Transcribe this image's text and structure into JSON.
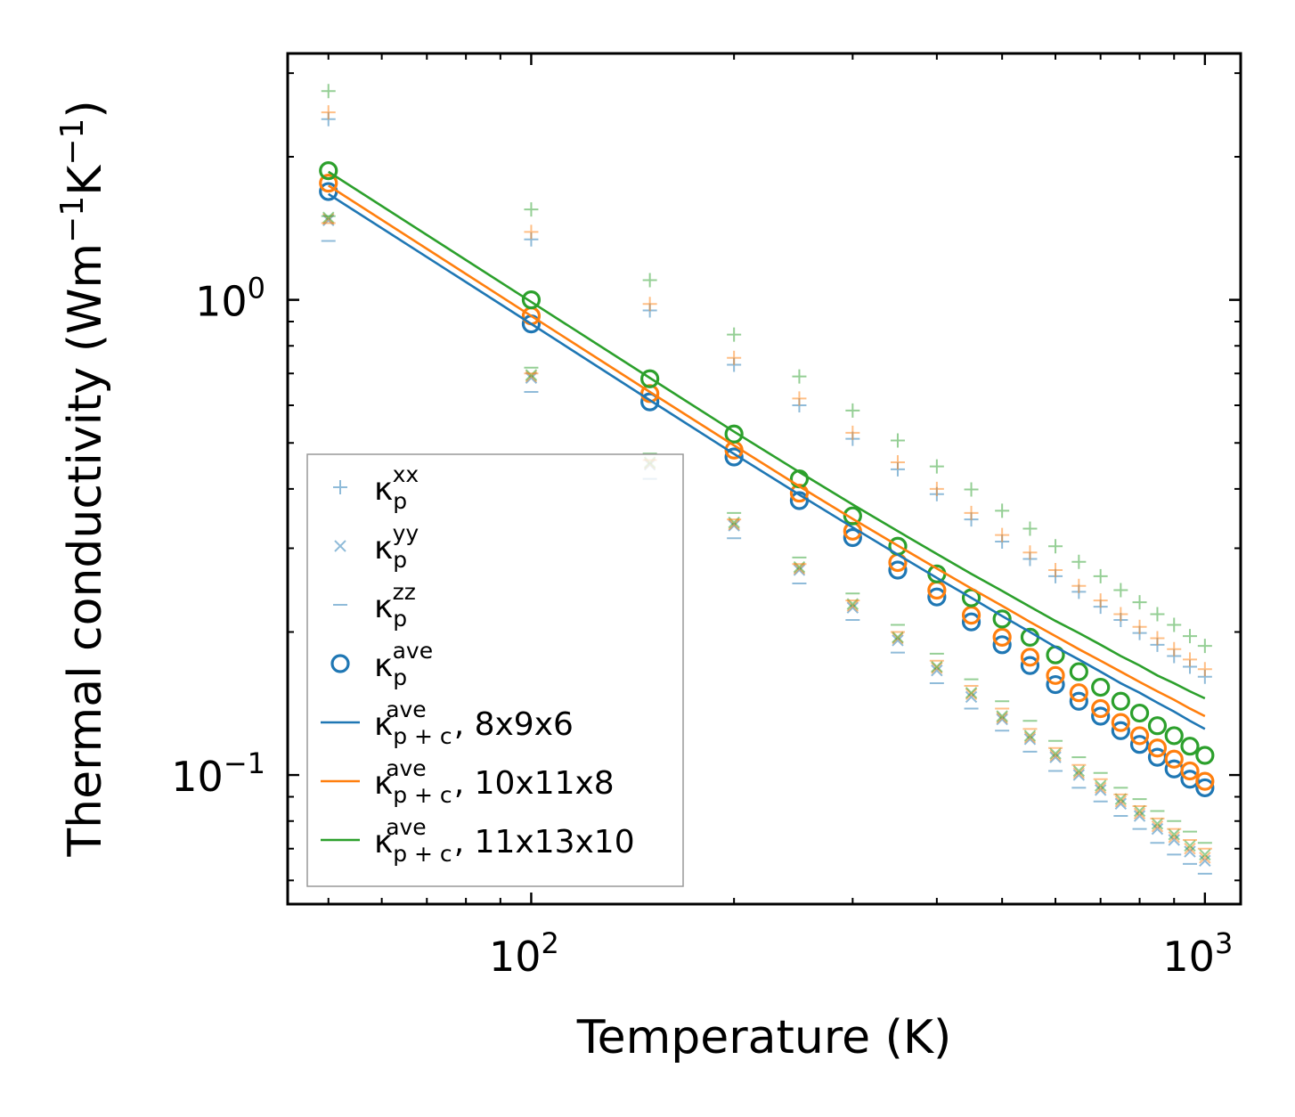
{
  "chart_data": {
    "type": "scatter",
    "title": "",
    "xlabel": "Temperature (K)",
    "ylabel_main": "Thermal conductivity (Wm",
    "ylabel_exp1": "−1",
    "ylabel_mid": "K",
    "ylabel_exp2": "−1",
    "ylabel_close": ")",
    "xscale": "log",
    "yscale": "log",
    "xlim": [
      43.5,
      1130
    ],
    "ylim": [
      0.0535,
      3.3
    ],
    "x_ticks": [
      {
        "value": 100,
        "base": "10",
        "exp": "2"
      },
      {
        "value": 1000,
        "base": "10",
        "exp": "3"
      }
    ],
    "y_ticks": [
      {
        "value": 1.0,
        "base": "10",
        "exp": "0"
      },
      {
        "value": 0.1,
        "base": "10",
        "exp": "−1"
      }
    ],
    "colors": {
      "blue": "#1f77b4",
      "orange": "#ff7f0e",
      "green": "#2ca02c"
    },
    "temperatures": [
      50,
      100,
      150,
      200,
      250,
      300,
      350,
      400,
      450,
      500,
      550,
      600,
      650,
      700,
      750,
      800,
      850,
      900,
      950,
      1000
    ],
    "series": [
      {
        "name": "kp_xx_8x9x6",
        "mesh": "8x9x6",
        "component": "xx",
        "marker": "plus",
        "color": "#1f77b4",
        "values": [
          2.4,
          1.34,
          0.95,
          0.73,
          0.6,
          0.51,
          0.44,
          0.39,
          0.345,
          0.31,
          0.285,
          0.262,
          0.243,
          0.226,
          0.212,
          0.199,
          0.188,
          0.178,
          0.169,
          0.161
        ]
      },
      {
        "name": "kp_xx_10x11x8",
        "mesh": "10x11x8",
        "component": "xx",
        "marker": "plus",
        "color": "#ff7f0e",
        "values": [
          2.48,
          1.39,
          0.98,
          0.755,
          0.62,
          0.525,
          0.455,
          0.4,
          0.356,
          0.32,
          0.294,
          0.27,
          0.25,
          0.233,
          0.218,
          0.205,
          0.194,
          0.184,
          0.175,
          0.167
        ]
      },
      {
        "name": "kp_xx_11x13x10",
        "mesh": "11x13x10",
        "component": "xx",
        "marker": "plus",
        "color": "#2ca02c",
        "values": [
          2.75,
          1.55,
          1.1,
          0.845,
          0.69,
          0.585,
          0.506,
          0.446,
          0.399,
          0.36,
          0.33,
          0.303,
          0.281,
          0.262,
          0.245,
          0.231,
          0.218,
          0.207,
          0.196,
          0.187
        ]
      },
      {
        "name": "kp_yy_8x9x6",
        "mesh": "8x9x6",
        "component": "yy",
        "marker": "x",
        "color": "#1f77b4",
        "values": [
          1.47,
          0.685,
          0.45,
          0.335,
          0.27,
          0.225,
          0.192,
          0.166,
          0.146,
          0.131,
          0.119,
          0.109,
          0.1,
          0.093,
          0.087,
          0.082,
          0.077,
          0.073,
          0.069,
          0.066
        ]
      },
      {
        "name": "kp_yy_10x11x8",
        "mesh": "10x11x8",
        "component": "yy",
        "marker": "x",
        "color": "#ff7f0e",
        "values": [
          1.48,
          0.69,
          0.452,
          0.337,
          0.272,
          0.227,
          0.194,
          0.168,
          0.148,
          0.132,
          0.12,
          0.11,
          0.101,
          0.094,
          0.088,
          0.083,
          0.078,
          0.074,
          0.07,
          0.067
        ]
      },
      {
        "name": "kp_yy_11x13x10",
        "mesh": "11x13x10",
        "component": "yy",
        "marker": "x",
        "color": "#2ca02c",
        "values": [
          1.49,
          0.695,
          0.455,
          0.34,
          0.274,
          0.229,
          0.195,
          0.169,
          0.149,
          0.133,
          0.121,
          0.111,
          0.102,
          0.095,
          0.089,
          0.084,
          0.079,
          0.075,
          0.071,
          0.068
        ]
      },
      {
        "name": "kp_zz_8x9x6",
        "mesh": "8x9x6",
        "component": "zz",
        "marker": "dash",
        "color": "#1f77b4",
        "values": [
          1.33,
          0.64,
          0.42,
          0.315,
          0.253,
          0.212,
          0.181,
          0.156,
          0.138,
          0.124,
          0.112,
          0.102,
          0.094,
          0.088,
          0.082,
          0.077,
          0.072,
          0.068,
          0.065,
          0.062
        ]
      },
      {
        "name": "kp_zz_10x11x8",
        "mesh": "10x11x8",
        "component": "zz",
        "marker": "dash",
        "color": "#ff7f0e",
        "values": [
          1.45,
          0.7,
          0.46,
          0.345,
          0.278,
          0.233,
          0.2,
          0.174,
          0.154,
          0.138,
          0.125,
          0.114,
          0.105,
          0.098,
          0.091,
          0.086,
          0.081,
          0.077,
          0.073,
          0.07
        ]
      },
      {
        "name": "kp_zz_11x13x10",
        "mesh": "11x13x10",
        "component": "zz",
        "marker": "dash",
        "color": "#2ca02c",
        "values": [
          1.5,
          0.72,
          0.475,
          0.356,
          0.287,
          0.241,
          0.207,
          0.18,
          0.159,
          0.143,
          0.13,
          0.118,
          0.109,
          0.101,
          0.094,
          0.089,
          0.084,
          0.08,
          0.076,
          0.072
        ]
      },
      {
        "name": "kp_ave_8x9x6",
        "mesh": "8x9x6",
        "component": "ave",
        "marker": "circle",
        "color": "#1f77b4",
        "values": [
          1.69,
          0.89,
          0.61,
          0.467,
          0.378,
          0.316,
          0.27,
          0.237,
          0.21,
          0.188,
          0.17,
          0.155,
          0.143,
          0.133,
          0.124,
          0.116,
          0.109,
          0.103,
          0.098,
          0.094
        ]
      },
      {
        "name": "kp_ave_10x11x8",
        "mesh": "10x11x8",
        "component": "ave",
        "marker": "circle",
        "color": "#ff7f0e",
        "values": [
          1.76,
          0.925,
          0.635,
          0.483,
          0.392,
          0.326,
          0.28,
          0.245,
          0.217,
          0.195,
          0.177,
          0.162,
          0.149,
          0.138,
          0.129,
          0.121,
          0.114,
          0.108,
          0.102,
          0.097
        ]
      },
      {
        "name": "kp_ave_11x13x10",
        "mesh": "11x13x10",
        "component": "ave",
        "marker": "circle",
        "color": "#2ca02c",
        "values": [
          1.87,
          1.0,
          0.682,
          0.522,
          0.42,
          0.351,
          0.303,
          0.265,
          0.236,
          0.213,
          0.195,
          0.179,
          0.165,
          0.153,
          0.143,
          0.135,
          0.127,
          0.121,
          0.115,
          0.11
        ]
      },
      {
        "name": "kpc_ave_8x9x6",
        "mesh": "8x9x6",
        "component": "p+c ave",
        "marker": "line",
        "color": "#1f77b4",
        "values": [
          1.67,
          0.89,
          0.615,
          0.474,
          0.389,
          0.332,
          0.291,
          0.26,
          0.236,
          0.216,
          0.2,
          0.186,
          0.175,
          0.165,
          0.156,
          0.149,
          0.142,
          0.136,
          0.13,
          0.125
        ]
      },
      {
        "name": "kpc_ave_10x11x8",
        "mesh": "10x11x8",
        "component": "p+c ave",
        "marker": "line",
        "color": "#ff7f0e",
        "values": [
          1.74,
          0.925,
          0.64,
          0.494,
          0.405,
          0.346,
          0.304,
          0.272,
          0.247,
          0.227,
          0.21,
          0.196,
          0.184,
          0.174,
          0.165,
          0.157,
          0.15,
          0.144,
          0.138,
          0.133
        ]
      },
      {
        "name": "kpc_ave_11x13x10",
        "mesh": "11x13x10",
        "component": "p+c ave",
        "marker": "line",
        "color": "#2ca02c",
        "values": [
          1.86,
          0.99,
          0.685,
          0.528,
          0.434,
          0.371,
          0.326,
          0.292,
          0.265,
          0.244,
          0.226,
          0.211,
          0.199,
          0.188,
          0.178,
          0.17,
          0.162,
          0.156,
          0.15,
          0.145
        ]
      }
    ],
    "legend": {
      "location": "lower-left",
      "entries": [
        {
          "marker": "plus",
          "color": "#1f77b4",
          "sym": "κ",
          "sub": "p",
          "sup": "xx",
          "suffix": ""
        },
        {
          "marker": "x",
          "color": "#1f77b4",
          "sym": "κ",
          "sub": "p",
          "sup": "yy",
          "suffix": ""
        },
        {
          "marker": "dash",
          "color": "#1f77b4",
          "sym": "κ",
          "sub": "p",
          "sup": "zz",
          "suffix": ""
        },
        {
          "marker": "circle",
          "color": "#1f77b4",
          "sym": "κ",
          "sub": "p",
          "sup": "ave",
          "suffix": ""
        },
        {
          "marker": "line",
          "color": "#1f77b4",
          "sym": "κ",
          "sub": "p + c",
          "sup": "ave",
          "suffix": ", 8x9x6"
        },
        {
          "marker": "line",
          "color": "#ff7f0e",
          "sym": "κ",
          "sub": "p + c",
          "sup": "ave",
          "suffix": ", 10x11x8"
        },
        {
          "marker": "line",
          "color": "#2ca02c",
          "sym": "κ",
          "sub": "p + c",
          "sup": "ave",
          "suffix": ", 11x13x10"
        }
      ]
    }
  }
}
